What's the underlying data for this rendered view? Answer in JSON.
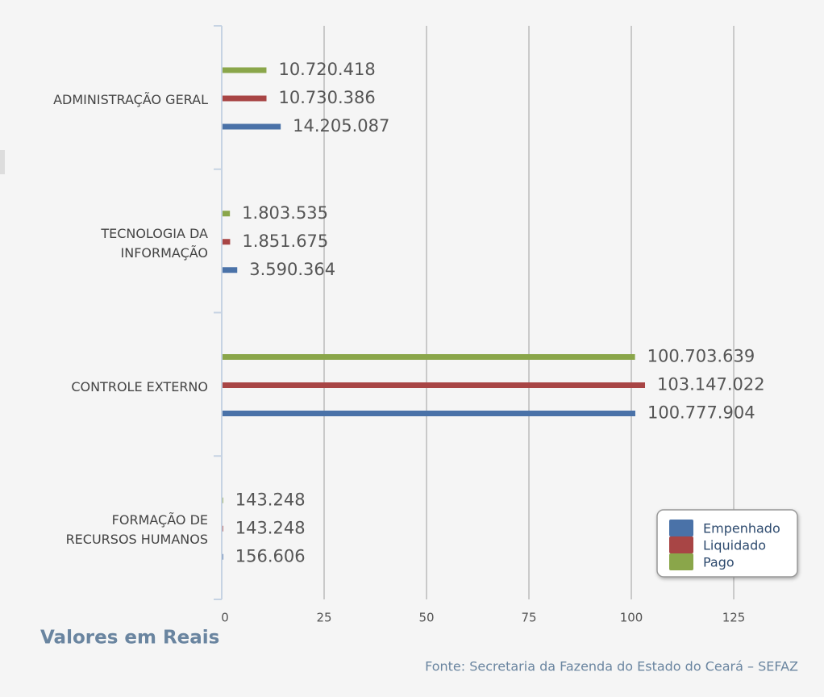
{
  "chart_data": {
    "type": "barh",
    "categories": [
      "ADMINISTRAÇÃO GERAL",
      "TECNOLOGIA DA INFORMAÇÃO",
      "CONTROLE EXTERNO",
      "FORMAÇÃO DE RECURSOS HUMANOS"
    ],
    "series": [
      {
        "name": "Empenhado",
        "color": "#4a72a8",
        "values": [
          14.205087,
          3.590364,
          100.777904,
          0.156606
        ],
        "value_labels": [
          "14.205.087",
          "3.590.364",
          "100.777.904",
          "156.606"
        ]
      },
      {
        "name": "Liquidado",
        "color": "#a84545",
        "values": [
          10.730386,
          1.851675,
          103.147022,
          0.143248
        ],
        "value_labels": [
          "10.730.386",
          "1.851.675",
          "103.147.022",
          "143.248"
        ]
      },
      {
        "name": "Pago",
        "color": "#8aa64a",
        "values": [
          10.720418,
          1.803535,
          100.703639,
          0.143248
        ],
        "value_labels": [
          "10.720.418",
          "1.803.535",
          "100.703.639",
          "143.248"
        ]
      }
    ],
    "xlim": [
      0,
      137
    ],
    "xticks": [
      0,
      25,
      50,
      75,
      100,
      125
    ],
    "grid": true,
    "legend": "lower right",
    "xlabel": "Valores em Reais",
    "source": "Fonte: Secretaria da Fazenda do Estado do Ceará – SEFAZ"
  }
}
